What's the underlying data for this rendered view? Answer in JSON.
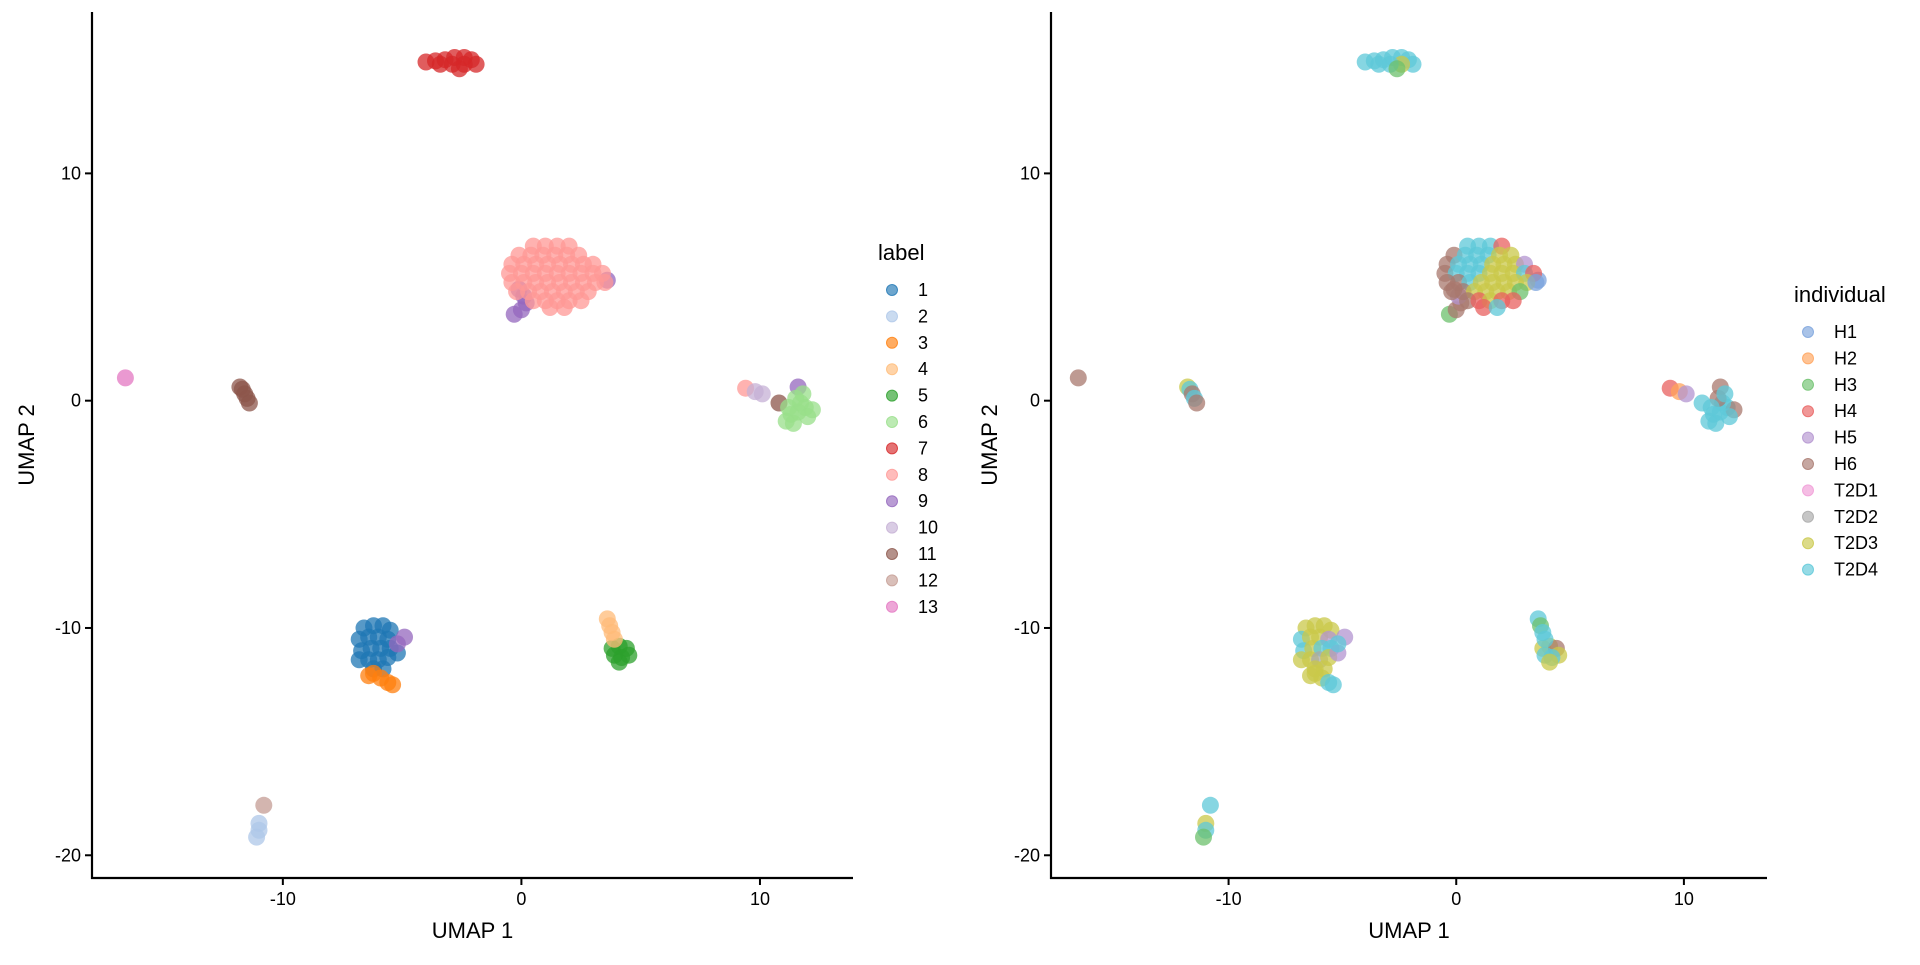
{
  "chart_data": {
    "type": "scatter",
    "grid": false,
    "cells": {
      "columns": [
        "UMAP 1",
        "UMAP 2",
        "label",
        "individual"
      ],
      "rows": [
        [
          -4.0,
          14.9,
          "7",
          "T2D4"
        ],
        [
          -3.6,
          14.95,
          "7",
          "T2D4"
        ],
        [
          -3.2,
          15.0,
          "7",
          "T2D4"
        ],
        [
          -2.8,
          15.1,
          "7",
          "T2D4"
        ],
        [
          -2.4,
          15.1,
          "7",
          "T2D4"
        ],
        [
          -2.1,
          15.0,
          "7",
          "T2D4"
        ],
        [
          -1.9,
          14.8,
          "7",
          "T2D4"
        ],
        [
          -2.4,
          14.8,
          "7",
          "T2D3"
        ],
        [
          -2.9,
          14.8,
          "7",
          "T2D4"
        ],
        [
          -3.4,
          14.8,
          "7",
          "T2D4"
        ],
        [
          -2.6,
          14.6,
          "7",
          "H3"
        ],
        [
          -0.3,
          3.8,
          "9",
          "H3"
        ],
        [
          0.0,
          4.0,
          "9",
          "H6"
        ],
        [
          0.2,
          4.3,
          "9",
          "H6"
        ],
        [
          0.1,
          4.6,
          "9",
          "H5"
        ],
        [
          -0.1,
          4.9,
          "9",
          "H6"
        ],
        [
          3.6,
          5.3,
          "9",
          "H1"
        ],
        [
          0.5,
          6.8,
          "8",
          "T2D4"
        ],
        [
          1.0,
          6.8,
          "8",
          "T2D4"
        ],
        [
          1.5,
          6.8,
          "8",
          "T2D4"
        ],
        [
          2.0,
          6.8,
          "8",
          "H4"
        ],
        [
          -0.1,
          6.4,
          "8",
          "H6"
        ],
        [
          0.4,
          6.4,
          "8",
          "T2D4"
        ],
        [
          0.9,
          6.4,
          "8",
          "T2D4"
        ],
        [
          1.4,
          6.4,
          "8",
          "T2D4"
        ],
        [
          1.9,
          6.4,
          "8",
          "T2D3"
        ],
        [
          2.4,
          6.4,
          "8",
          "T2D3"
        ],
        [
          -0.4,
          6.0,
          "8",
          "H6"
        ],
        [
          0.1,
          6.0,
          "8",
          "T2D4"
        ],
        [
          0.6,
          6.0,
          "8",
          "T2D4"
        ],
        [
          1.1,
          6.0,
          "8",
          "T2D4"
        ],
        [
          1.6,
          6.0,
          "8",
          "T2D3"
        ],
        [
          2.1,
          6.0,
          "8",
          "T2D3"
        ],
        [
          2.6,
          6.0,
          "8",
          "T2D3"
        ],
        [
          3.0,
          6.0,
          "8",
          "H5"
        ],
        [
          -0.5,
          5.6,
          "8",
          "H6"
        ],
        [
          0.0,
          5.6,
          "8",
          "T2D4"
        ],
        [
          0.5,
          5.6,
          "8",
          "T2D4"
        ],
        [
          1.0,
          5.6,
          "8",
          "T2D4"
        ],
        [
          1.5,
          5.6,
          "8",
          "T2D3"
        ],
        [
          2.0,
          5.6,
          "8",
          "T2D3"
        ],
        [
          2.5,
          5.6,
          "8",
          "T2D3"
        ],
        [
          3.0,
          5.6,
          "8",
          "T2D4"
        ],
        [
          3.4,
          5.6,
          "8",
          "H4"
        ],
        [
          -0.4,
          5.2,
          "8",
          "H6"
        ],
        [
          0.1,
          5.2,
          "8",
          "H6"
        ],
        [
          0.6,
          5.2,
          "8",
          "T2D4"
        ],
        [
          1.1,
          5.2,
          "8",
          "T2D3"
        ],
        [
          1.6,
          5.2,
          "8",
          "T2D3"
        ],
        [
          2.1,
          5.2,
          "8",
          "T2D3"
        ],
        [
          2.6,
          5.2,
          "8",
          "T2D3"
        ],
        [
          3.1,
          5.2,
          "8",
          "T2D3"
        ],
        [
          3.5,
          5.2,
          "8",
          "H1"
        ],
        [
          -0.2,
          4.8,
          "8",
          "H6"
        ],
        [
          0.3,
          4.8,
          "8",
          "H6"
        ],
        [
          0.8,
          4.8,
          "8",
          "T2D3"
        ],
        [
          1.3,
          4.8,
          "8",
          "T2D3"
        ],
        [
          1.8,
          4.8,
          "8",
          "T2D3"
        ],
        [
          2.3,
          4.8,
          "8",
          "T2D3"
        ],
        [
          2.8,
          4.8,
          "8",
          "H3"
        ],
        [
          0.5,
          4.4,
          "8",
          "H6"
        ],
        [
          1.0,
          4.4,
          "8",
          "H4"
        ],
        [
          1.5,
          4.4,
          "8",
          "T2D3"
        ],
        [
          2.0,
          4.4,
          "8",
          "H4"
        ],
        [
          2.5,
          4.4,
          "8",
          "H4"
        ],
        [
          1.2,
          4.1,
          "8",
          "H4"
        ],
        [
          1.8,
          4.1,
          "8",
          "T2D4"
        ],
        [
          -16.6,
          1.0,
          "13",
          "H6"
        ],
        [
          -11.8,
          0.6,
          "11",
          "T2D3"
        ],
        [
          -11.7,
          0.5,
          "11",
          "T2D4"
        ],
        [
          -11.6,
          0.3,
          "11",
          "H6"
        ],
        [
          -11.5,
          0.1,
          "11",
          "T2D4"
        ],
        [
          -11.4,
          -0.1,
          "11",
          "H6"
        ],
        [
          9.4,
          0.55,
          "8",
          "H4"
        ],
        [
          9.8,
          0.4,
          "10",
          "H2"
        ],
        [
          10.1,
          0.3,
          "10",
          "H5"
        ],
        [
          10.8,
          -0.1,
          "11",
          "T2D4"
        ],
        [
          11.6,
          0.6,
          "9",
          "H6"
        ],
        [
          11.1,
          -0.9,
          "6",
          "T2D4"
        ],
        [
          11.4,
          -1.0,
          "6",
          "T2D4"
        ],
        [
          11.3,
          -0.6,
          "6",
          "T2D4"
        ],
        [
          11.6,
          -0.5,
          "6",
          "T2D4"
        ],
        [
          11.9,
          -0.3,
          "6",
          "T2D4"
        ],
        [
          12.2,
          -0.4,
          "6",
          "H6"
        ],
        [
          11.7,
          -0.1,
          "6",
          "T2D4"
        ],
        [
          11.5,
          0.1,
          "6",
          "H6"
        ],
        [
          11.2,
          -0.3,
          "6",
          "T2D4"
        ],
        [
          12.0,
          -0.7,
          "6",
          "T2D4"
        ],
        [
          11.8,
          0.3,
          "6",
          "T2D4"
        ],
        [
          -6.6,
          -10.0,
          "1",
          "T2D3"
        ],
        [
          -6.2,
          -9.9,
          "1",
          "T2D3"
        ],
        [
          -5.8,
          -9.9,
          "1",
          "T2D3"
        ],
        [
          -5.5,
          -10.1,
          "1",
          "T2D3"
        ],
        [
          -6.8,
          -10.5,
          "1",
          "T2D4"
        ],
        [
          -6.4,
          -10.4,
          "1",
          "T2D3"
        ],
        [
          -6.0,
          -10.4,
          "1",
          "T2D3"
        ],
        [
          -5.6,
          -10.5,
          "1",
          "H5"
        ],
        [
          -6.7,
          -11.0,
          "1",
          "T2D4"
        ],
        [
          -6.3,
          -10.9,
          "1",
          "T2D3"
        ],
        [
          -5.9,
          -10.9,
          "1",
          "T2D4"
        ],
        [
          -5.5,
          -10.9,
          "1",
          "T2D4"
        ],
        [
          -6.8,
          -11.4,
          "1",
          "T2D3"
        ],
        [
          -6.4,
          -11.4,
          "1",
          "T2D3"
        ],
        [
          -6.0,
          -11.4,
          "1",
          "T2D2"
        ],
        [
          -5.6,
          -11.3,
          "1",
          "T2D3"
        ],
        [
          -6.2,
          -11.8,
          "1",
          "T2D3"
        ],
        [
          -5.8,
          -11.8,
          "1",
          "T2D3"
        ],
        [
          -5.2,
          -11.1,
          "1",
          "H5"
        ],
        [
          -4.9,
          -10.4,
          "9",
          "H5"
        ],
        [
          -5.2,
          -10.7,
          "9",
          "T2D4"
        ],
        [
          -6.4,
          -12.1,
          "3",
          "T2D3"
        ],
        [
          -6.2,
          -12.0,
          "3",
          "T2D3"
        ],
        [
          -5.9,
          -12.2,
          "3",
          "T2D3"
        ],
        [
          -5.6,
          -12.4,
          "3",
          "T2D4"
        ],
        [
          -5.4,
          -12.5,
          "3",
          "T2D4"
        ],
        [
          3.8,
          -10.9,
          "5",
          "T2D3"
        ],
        [
          4.1,
          -10.8,
          "5",
          "T2D3"
        ],
        [
          4.4,
          -10.9,
          "5",
          "H6"
        ],
        [
          4.5,
          -11.2,
          "5",
          "T2D3"
        ],
        [
          4.2,
          -11.3,
          "5",
          "T2D4"
        ],
        [
          3.9,
          -11.2,
          "5",
          "T2D4"
        ],
        [
          4.1,
          -11.5,
          "5",
          "T2D3"
        ],
        [
          3.6,
          -9.6,
          "4",
          "T2D4"
        ],
        [
          3.7,
          -9.9,
          "4",
          "H3"
        ],
        [
          3.8,
          -10.2,
          "4",
          "T2D4"
        ],
        [
          3.9,
          -10.5,
          "4",
          "T2D4"
        ],
        [
          -11.0,
          -18.6,
          "2",
          "T2D3"
        ],
        [
          -11.0,
          -18.9,
          "2",
          "T2D4"
        ],
        [
          -11.1,
          -19.2,
          "2",
          "H3"
        ],
        [
          -10.8,
          -17.8,
          "12",
          "T2D4"
        ]
      ]
    },
    "panels": [
      {
        "color_by": "label",
        "xlabel": "UMAP 1",
        "ylabel": "UMAP 2",
        "xlim": [
          -18,
          13.9
        ],
        "ylim": [
          -21,
          17.1
        ],
        "xticks": [
          -10,
          0,
          10
        ],
        "yticks": [
          -20,
          -10,
          0,
          10
        ],
        "legend_title": "label",
        "legend_position": "right",
        "categories": [
          "1",
          "2",
          "3",
          "4",
          "5",
          "6",
          "7",
          "8",
          "9",
          "10",
          "11",
          "12",
          "13"
        ],
        "colors": [
          "#1f77b4",
          "#aec7e8",
          "#ff7f0e",
          "#ffbb78",
          "#2ca02c",
          "#98df8a",
          "#d62728",
          "#ff9896",
          "#9467bd",
          "#c5b0d5",
          "#8c564b",
          "#c49c94",
          "#e377c2"
        ]
      },
      {
        "color_by": "individual",
        "xlabel": "UMAP 1",
        "ylabel": "UMAP 2",
        "xlim": [
          -17.8,
          13.65
        ],
        "ylim": [
          -21,
          17.1
        ],
        "xticks": [
          -10,
          0,
          10
        ],
        "yticks": [
          -20,
          -10,
          0,
          10
        ],
        "legend_title": "individual",
        "legend_position": "right",
        "categories": [
          "H1",
          "H2",
          "H3",
          "H4",
          "H5",
          "H6",
          "T2D1",
          "T2D2",
          "T2D3",
          "T2D4"
        ],
        "colors": [
          "#7ba3dc",
          "#ffa35a",
          "#6cc06c",
          "#e8605f",
          "#b394d0",
          "#a8786e",
          "#f09ad6",
          "#a8a8a8",
          "#c9c84a",
          "#5dc8d8"
        ]
      }
    ]
  }
}
